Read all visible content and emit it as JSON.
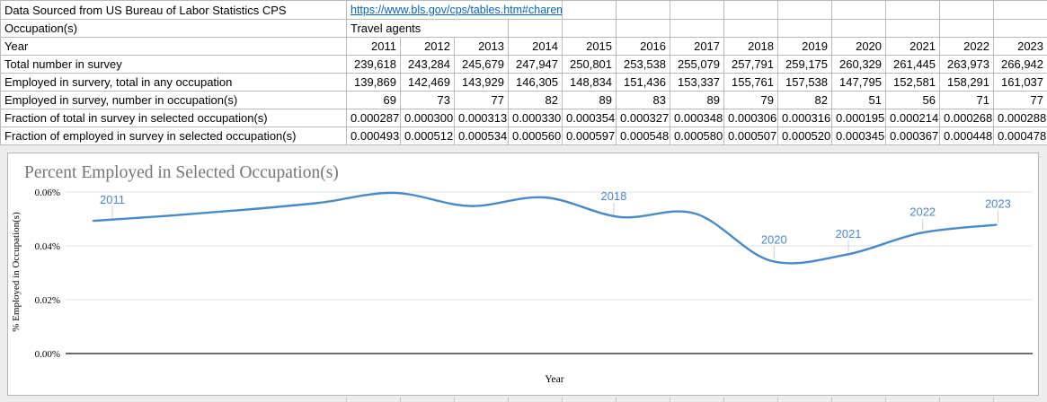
{
  "sheet": {
    "source_row": {
      "label": "Data Sourced from US Bureau of Labor Statistics CPS",
      "link": "https://www.bls.gov/cps/tables.htm#charemp"
    },
    "occupation_row": {
      "label": "Occupation(s)",
      "value": "Travel agents"
    },
    "year_row": {
      "label": "Year",
      "years": [
        "2011",
        "2012",
        "2013",
        "2014",
        "2015",
        "2016",
        "2017",
        "2018",
        "2019",
        "2020",
        "2021",
        "2022",
        "2023"
      ]
    },
    "data_rows": [
      {
        "label": "Total number in survey",
        "values": [
          "239,618",
          "243,284",
          "245,679",
          "247,947",
          "250,801",
          "253,538",
          "255,079",
          "257,791",
          "259,175",
          "260,329",
          "261,445",
          "263,973",
          "266,942"
        ]
      },
      {
        "label": "Employed in survery, total in any occupation",
        "values": [
          "139,869",
          "142,469",
          "143,929",
          "146,305",
          "148,834",
          "151,436",
          "153,337",
          "155,761",
          "157,538",
          "147,795",
          "152,581",
          "158,291",
          "161,037"
        ]
      },
      {
        "label": "Employed in survey, number in occupation(s)",
        "values": [
          "69",
          "73",
          "77",
          "82",
          "89",
          "83",
          "89",
          "79",
          "82",
          "51",
          "56",
          "71",
          "77"
        ]
      },
      {
        "label": "Fraction of total in survey in selected occupation(s)",
        "values": [
          "0.000287",
          "0.000300",
          "0.000313",
          "0.000330",
          "0.000354",
          "0.000327",
          "0.000348",
          "0.000306",
          "0.000316",
          "0.000195",
          "0.000214",
          "0.000268",
          "0.000288"
        ]
      },
      {
        "label": "Fraction of employed in survey in selected occupation(s)",
        "values": [
          "0.000493",
          "0.000512",
          "0.000534",
          "0.000560",
          "0.000597",
          "0.000548",
          "0.000580",
          "0.000507",
          "0.000520",
          "0.000345",
          "0.000367",
          "0.000448",
          "0.000478"
        ]
      }
    ]
  },
  "chart_data": {
    "type": "line",
    "title": "Percent Employed in Selected Occupation(s)",
    "xlabel": "Year",
    "ylabel": "% Employed in Occupation(s)",
    "x": [
      "2011",
      "2012",
      "2013",
      "2014",
      "2015",
      "2016",
      "2017",
      "2018",
      "2019",
      "2020",
      "2021",
      "2022",
      "2023"
    ],
    "series": [
      {
        "name": "% Employed in Occupation(s)",
        "values_percent": [
          0.0493,
          0.0512,
          0.0534,
          0.056,
          0.0597,
          0.0548,
          0.058,
          0.0507,
          0.052,
          0.0345,
          0.0367,
          0.0448,
          0.0478
        ]
      }
    ],
    "ylim_percent": [
      0,
      0.06
    ],
    "yticks": [
      "0.00%",
      "0.02%",
      "0.04%",
      "0.06%"
    ],
    "grid": true,
    "legend": "none",
    "annotated_points": [
      "2011",
      "2018",
      "2020",
      "2021",
      "2022",
      "2023"
    ],
    "colors": {
      "line": "#4a89c9",
      "annotation": "#4a86c8",
      "title": "#757575",
      "gridline": "#e0e0e0",
      "zero_axis": "#3c3c3c",
      "occupation_fill": "#6fbe8c",
      "occupation_border": "#1e6b41",
      "link": "#0563c1"
    }
  }
}
